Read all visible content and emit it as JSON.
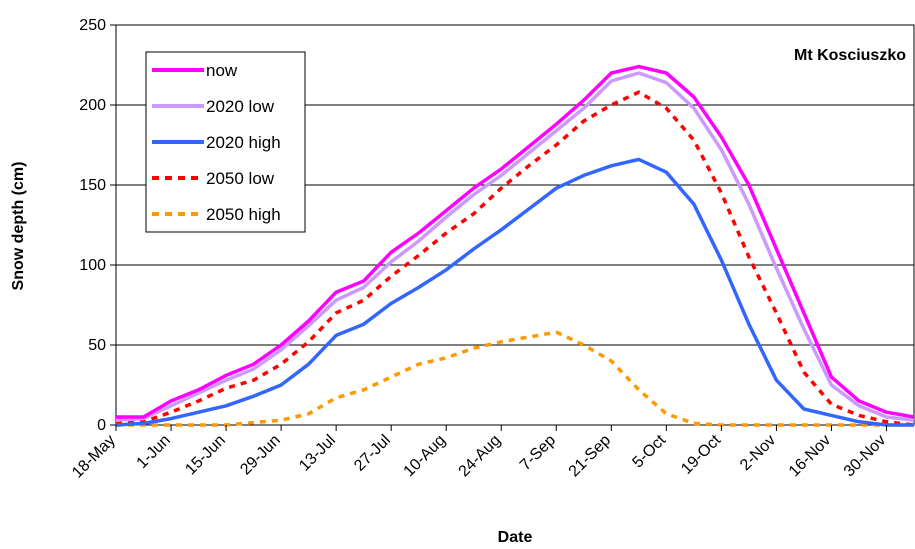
{
  "chart_data": {
    "type": "line",
    "title": "",
    "annotation": "Mt Kosciuszko",
    "xlabel": "Date",
    "ylabel": "Snow depth (cm)",
    "ylim": [
      0,
      250
    ],
    "yticks": [
      0,
      50,
      100,
      150,
      200,
      250
    ],
    "xlim": [
      "18-May",
      "7-Dec"
    ],
    "xtick_labels": [
      "18-May",
      "1-Jun",
      "15-Jun",
      "29-Jun",
      "13-Jul",
      "27-Jul",
      "10-Aug",
      "24-Aug",
      "7-Sep",
      "21-Sep",
      "5-Oct",
      "19-Oct",
      "2-Nov",
      "16-Nov",
      "30-Nov"
    ],
    "grid": "horizontal",
    "legend_position": "top-left",
    "series": [
      {
        "name": "now",
        "color": "#FF00FF",
        "style": "solid",
        "points": [
          [
            "18-May",
            5
          ],
          [
            "25-May",
            5
          ],
          [
            "1-Jun",
            15
          ],
          [
            "8-Jun",
            22
          ],
          [
            "15-Jun",
            31
          ],
          [
            "22-Jun",
            38
          ],
          [
            "29-Jun",
            50
          ],
          [
            "6-Jul",
            65
          ],
          [
            "13-Jul",
            83
          ],
          [
            "20-Jul",
            90
          ],
          [
            "27-Jul",
            108
          ],
          [
            "3-Aug",
            120
          ],
          [
            "10-Aug",
            134
          ],
          [
            "17-Aug",
            148
          ],
          [
            "24-Aug",
            160
          ],
          [
            "31-Aug",
            174
          ],
          [
            "7-Sep",
            188
          ],
          [
            "14-Sep",
            203
          ],
          [
            "21-Sep",
            220
          ],
          [
            "28-Sep",
            224
          ],
          [
            "5-Oct",
            220
          ],
          [
            "12-Oct",
            205
          ],
          [
            "19-Oct",
            180
          ],
          [
            "26-Oct",
            150
          ],
          [
            "2-Nov",
            110
          ],
          [
            "9-Nov",
            70
          ],
          [
            "16-Nov",
            30
          ],
          [
            "23-Nov",
            15
          ],
          [
            "30-Nov",
            8
          ],
          [
            "7-Dec",
            5
          ]
        ]
      },
      {
        "name": "2020 low",
        "color": "#CC99FF",
        "style": "solid",
        "points": [
          [
            "18-May",
            3
          ],
          [
            "25-May",
            4
          ],
          [
            "1-Jun",
            12
          ],
          [
            "8-Jun",
            20
          ],
          [
            "15-Jun",
            28
          ],
          [
            "22-Jun",
            35
          ],
          [
            "29-Jun",
            47
          ],
          [
            "6-Jul",
            62
          ],
          [
            "13-Jul",
            78
          ],
          [
            "20-Jul",
            86
          ],
          [
            "27-Jul",
            102
          ],
          [
            "3-Aug",
            115
          ],
          [
            "10-Aug",
            130
          ],
          [
            "17-Aug",
            144
          ],
          [
            "24-Aug",
            156
          ],
          [
            "31-Aug",
            170
          ],
          [
            "7-Sep",
            184
          ],
          [
            "14-Sep",
            198
          ],
          [
            "21-Sep",
            215
          ],
          [
            "28-Sep",
            220
          ],
          [
            "5-Oct",
            214
          ],
          [
            "12-Oct",
            198
          ],
          [
            "19-Oct",
            172
          ],
          [
            "26-Oct",
            138
          ],
          [
            "2-Nov",
            98
          ],
          [
            "9-Nov",
            60
          ],
          [
            "16-Nov",
            25
          ],
          [
            "23-Nov",
            12
          ],
          [
            "30-Nov",
            5
          ],
          [
            "7-Dec",
            3
          ]
        ]
      },
      {
        "name": "2020 high",
        "color": "#3366FF",
        "style": "solid",
        "points": [
          [
            "18-May",
            0
          ],
          [
            "25-May",
            1
          ],
          [
            "1-Jun",
            4
          ],
          [
            "8-Jun",
            8
          ],
          [
            "15-Jun",
            12
          ],
          [
            "22-Jun",
            18
          ],
          [
            "29-Jun",
            25
          ],
          [
            "6-Jul",
            38
          ],
          [
            "13-Jul",
            56
          ],
          [
            "20-Jul",
            63
          ],
          [
            "27-Jul",
            76
          ],
          [
            "3-Aug",
            86
          ],
          [
            "10-Aug",
            97
          ],
          [
            "17-Aug",
            110
          ],
          [
            "24-Aug",
            122
          ],
          [
            "31-Aug",
            135
          ],
          [
            "7-Sep",
            148
          ],
          [
            "14-Sep",
            156
          ],
          [
            "21-Sep",
            162
          ],
          [
            "28-Sep",
            166
          ],
          [
            "5-Oct",
            158
          ],
          [
            "12-Oct",
            138
          ],
          [
            "19-Oct",
            103
          ],
          [
            "26-Oct",
            63
          ],
          [
            "2-Nov",
            28
          ],
          [
            "9-Nov",
            10
          ],
          [
            "16-Nov",
            6
          ],
          [
            "23-Nov",
            2
          ],
          [
            "30-Nov",
            0
          ],
          [
            "7-Dec",
            0
          ]
        ]
      },
      {
        "name": "2050 low",
        "color": "#FF0000",
        "style": "dashed",
        "points": [
          [
            "18-May",
            1
          ],
          [
            "25-May",
            2
          ],
          [
            "1-Jun",
            8
          ],
          [
            "8-Jun",
            15
          ],
          [
            "15-Jun",
            23
          ],
          [
            "22-Jun",
            28
          ],
          [
            "29-Jun",
            38
          ],
          [
            "6-Jul",
            52
          ],
          [
            "13-Jul",
            70
          ],
          [
            "20-Jul",
            78
          ],
          [
            "27-Jul",
            93
          ],
          [
            "3-Aug",
            106
          ],
          [
            "10-Aug",
            120
          ],
          [
            "17-Aug",
            132
          ],
          [
            "24-Aug",
            148
          ],
          [
            "31-Aug",
            162
          ],
          [
            "7-Sep",
            175
          ],
          [
            "14-Sep",
            190
          ],
          [
            "21-Sep",
            200
          ],
          [
            "28-Sep",
            208
          ],
          [
            "5-Oct",
            198
          ],
          [
            "12-Oct",
            178
          ],
          [
            "19-Oct",
            145
          ],
          [
            "26-Oct",
            105
          ],
          [
            "2-Nov",
            70
          ],
          [
            "9-Nov",
            33
          ],
          [
            "16-Nov",
            13
          ],
          [
            "23-Nov",
            6
          ],
          [
            "30-Nov",
            2
          ],
          [
            "7-Dec",
            0
          ]
        ]
      },
      {
        "name": "2050 high",
        "color": "#FF9900",
        "style": "dashed",
        "points": [
          [
            "18-May",
            0
          ],
          [
            "1-Jun",
            0
          ],
          [
            "15-Jun",
            0
          ],
          [
            "29-Jun",
            3
          ],
          [
            "6-Jul",
            7
          ],
          [
            "13-Jul",
            17
          ],
          [
            "20-Jul",
            22
          ],
          [
            "27-Jul",
            30
          ],
          [
            "3-Aug",
            38
          ],
          [
            "10-Aug",
            42
          ],
          [
            "17-Aug",
            48
          ],
          [
            "24-Aug",
            52
          ],
          [
            "31-Aug",
            55
          ],
          [
            "7-Sep",
            58
          ],
          [
            "14-Sep",
            50
          ],
          [
            "21-Sep",
            40
          ],
          [
            "28-Sep",
            22
          ],
          [
            "5-Oct",
            7
          ],
          [
            "12-Oct",
            1
          ],
          [
            "19-Oct",
            0
          ],
          [
            "2-Nov",
            0
          ],
          [
            "16-Nov",
            0
          ],
          [
            "30-Nov",
            0
          ],
          [
            "7-Dec",
            0
          ]
        ]
      }
    ]
  }
}
